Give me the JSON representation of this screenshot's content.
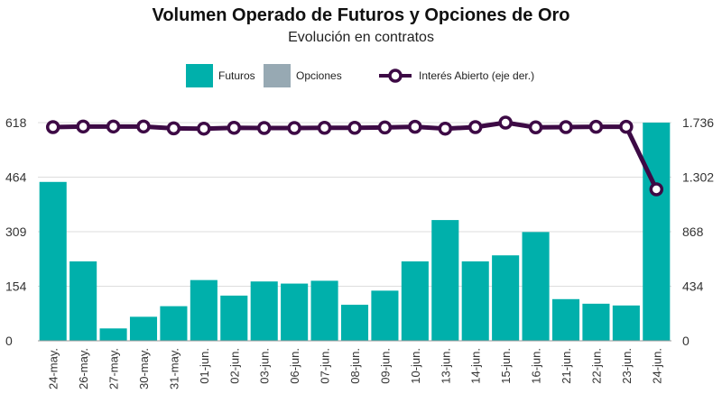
{
  "chart_data": {
    "type": "bar",
    "title": "Volumen Operado de Futuros y Opciones de Oro",
    "subtitle": "Evolución en contratos",
    "categories": [
      "24-may.",
      "26-may.",
      "27-may.",
      "30-may.",
      "31-may.",
      "01-jun.",
      "02-jun.",
      "03-jun.",
      "06-jun.",
      "07-jun.",
      "08-jun.",
      "09-jun.",
      "10-jun.",
      "13-jun.",
      "14-jun.",
      "15-jun.",
      "16-jun.",
      "21-jun.",
      "22-jun.",
      "23-jun.",
      "24-jun."
    ],
    "series": [
      {
        "name": "Futuros",
        "type": "bar",
        "axis": "left",
        "color": "#00b0ab",
        "values": [
          450,
          225,
          35,
          68,
          98,
          172,
          128,
          168,
          162,
          170,
          102,
          142,
          225,
          342,
          225,
          242,
          308,
          118,
          105,
          100,
          618
        ]
      },
      {
        "name": "Opciones",
        "type": "bar",
        "axis": "left",
        "color": "#97a9b3",
        "values": [
          0,
          0,
          0,
          0,
          0,
          0,
          0,
          0,
          0,
          0,
          0,
          0,
          0,
          0,
          0,
          0,
          0,
          0,
          0,
          0,
          0
        ]
      },
      {
        "name": "Interés Abierto (eje der.)",
        "type": "line",
        "axis": "right",
        "color": "#3d0a45",
        "values": [
          1700,
          1705,
          1705,
          1705,
          1690,
          1688,
          1695,
          1693,
          1693,
          1695,
          1695,
          1697,
          1703,
          1688,
          1700,
          1736,
          1698,
          1700,
          1703,
          1703,
          1205
        ]
      }
    ],
    "left_axis": {
      "ylim": [
        0,
        618
      ],
      "ticks": [
        "0",
        "154",
        "309",
        "464",
        "618"
      ],
      "tick_values": [
        0,
        154.5,
        309,
        463.5,
        618
      ]
    },
    "right_axis": {
      "ylim": [
        0,
        1736
      ],
      "ticks": [
        "0",
        "434",
        "868",
        "1.302",
        "1.736"
      ],
      "tick_values": [
        0,
        434,
        868,
        1302,
        1736
      ]
    },
    "grid": true,
    "legend_position": "top-center"
  }
}
